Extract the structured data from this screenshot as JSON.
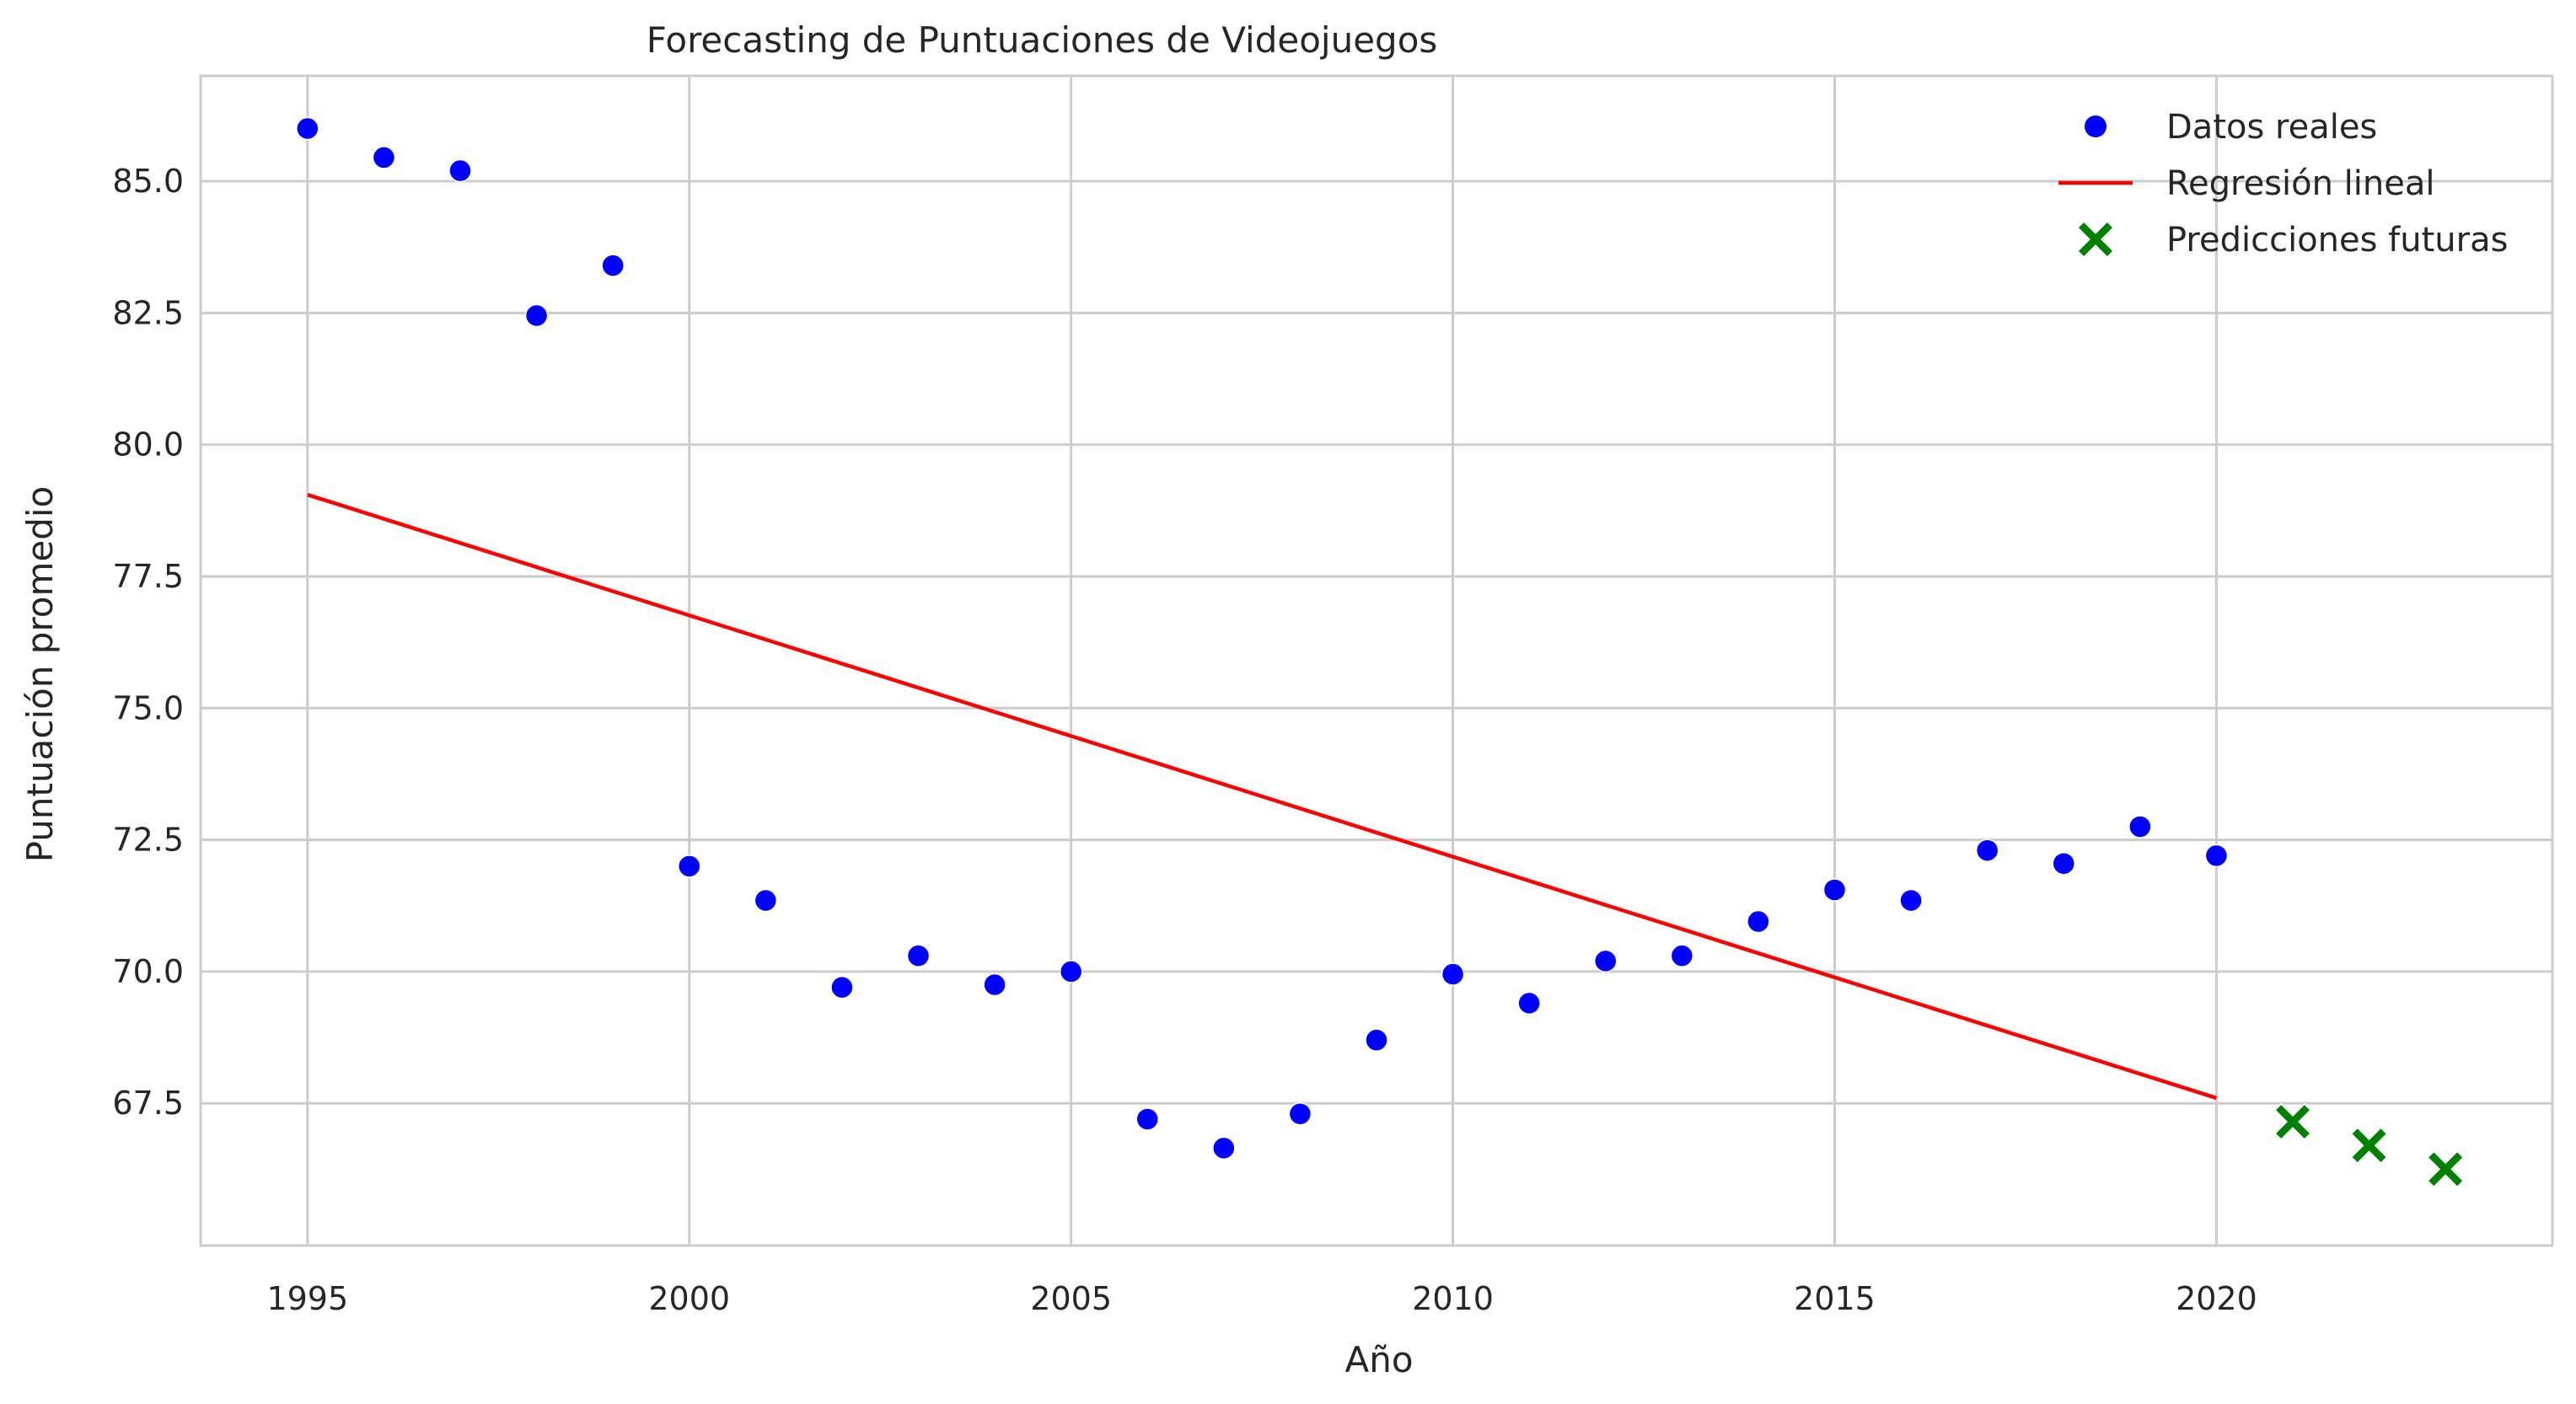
{
  "chart_data": {
    "type": "scatter",
    "title": "Forecasting de Puntuaciones de Videojuegos",
    "xlabel": "Año",
    "ylabel": "Puntuación promedio",
    "xlim": [
      1993.6,
      2024.4
    ],
    "ylim": [
      64.8,
      87.0
    ],
    "grid": true,
    "legend_position": "top-right",
    "xticks": [
      1995,
      2000,
      2005,
      2010,
      2015,
      2020
    ],
    "yticks": [
      67.5,
      70.0,
      72.5,
      75.0,
      77.5,
      80.0,
      82.5,
      85.0
    ],
    "ytick_labels": [
      "67.5",
      "70.0",
      "72.5",
      "75.0",
      "77.5",
      "80.0",
      "82.5",
      "85.0"
    ],
    "colors": {
      "actual": "#0000ff",
      "regression": "#ff0000",
      "forecast": "#008000",
      "grid": "#cccccc",
      "axes_border": "#cccccc"
    },
    "series": [
      {
        "name": "Datos reales",
        "kind": "scatter",
        "x": [
          1995,
          1996,
          1997,
          1998,
          1999,
          2000,
          2001,
          2002,
          2003,
          2004,
          2005,
          2006,
          2007,
          2008,
          2009,
          2010,
          2011,
          2012,
          2013,
          2014,
          2015,
          2016,
          2017,
          2018,
          2019,
          2020
        ],
        "y": [
          86.0,
          85.45,
          85.2,
          82.45,
          83.4,
          72.0,
          71.35,
          69.7,
          70.3,
          69.75,
          70.0,
          67.2,
          66.65,
          67.3,
          68.7,
          69.95,
          69.4,
          70.2,
          70.3,
          70.95,
          71.55,
          71.35,
          72.3,
          72.05,
          72.75,
          72.2
        ]
      },
      {
        "name": "Regresión lineal",
        "kind": "line",
        "x": [
          1995,
          2020
        ],
        "y": [
          79.05,
          67.6
        ]
      },
      {
        "name": "Predicciones futuras",
        "kind": "x-marker",
        "x": [
          2021,
          2022,
          2023
        ],
        "y": [
          67.15,
          66.7,
          66.25
        ]
      }
    ]
  }
}
